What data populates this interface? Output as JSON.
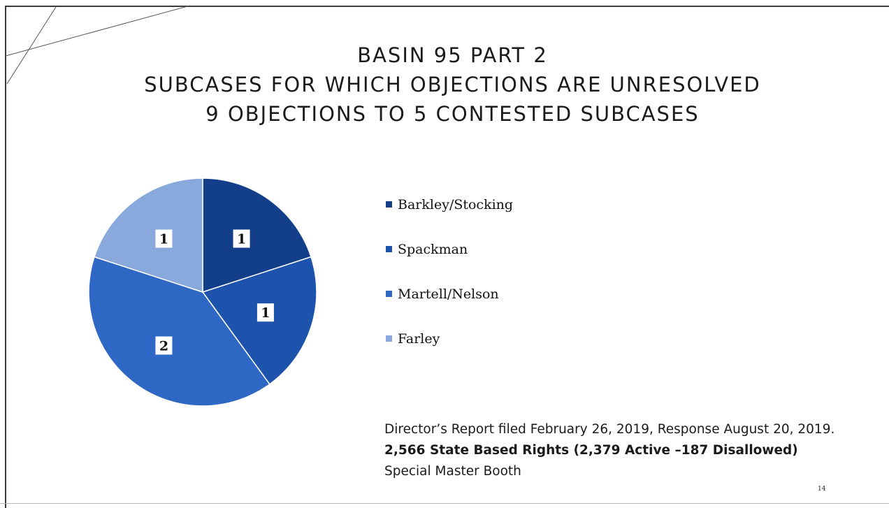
{
  "slide": {
    "title_lines": [
      "BASIN 95 PART 2",
      "SUBCASES FOR WHICH OBJECTIONS ARE UNRESOLVED",
      "9 OBJECTIONS TO 5 CONTESTED SUBCASES"
    ],
    "footer": {
      "line1": "Director’s Report filed February 26, 2019, Response August 20, 2019.",
      "line2": "2,566 State Based Rights (2,379 Active –187 Disallowed)",
      "line3": "Special Master Booth"
    },
    "page_number": "14"
  },
  "chart_data": {
    "type": "pie",
    "start": "12 o'clock",
    "direction": "clockwise",
    "series": [
      {
        "name": "Barkley/Stocking",
        "value": 1,
        "label": "1",
        "color": "#133e8a"
      },
      {
        "name": "Spackman",
        "value": 1,
        "label": "1",
        "color": "#1d52ad"
      },
      {
        "name": "Martell/Nelson",
        "value": 2,
        "label": "2",
        "color": "#2f67c4"
      },
      {
        "name": "Farley",
        "value": 1,
        "label": "1",
        "color": "#89a9dd"
      }
    ],
    "legend_position": "right"
  }
}
